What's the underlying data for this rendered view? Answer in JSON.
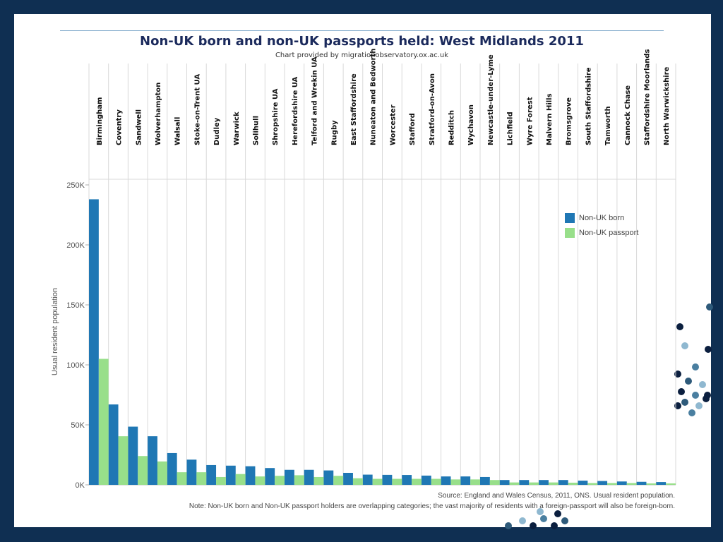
{
  "header": {
    "title": "Non-UK born and non-UK passports held: West Midlands 2011",
    "subtitle": "Chart provided by migrationobservatory.ox.ac.uk"
  },
  "legend": {
    "items": [
      {
        "label": "Non-UK born",
        "color": "#1f77b4"
      },
      {
        "label": "Non-UK passport",
        "color": "#98df8a"
      }
    ]
  },
  "footer": {
    "source": "Source: England and Wales Census, 2011, ONS. Usual resident population.",
    "note": "Note: Non-UK born and Non-UK passport holders are overlapping categories; the vast majority of residents with a foreign-passport will also be foreign-born."
  },
  "chart_data": {
    "type": "bar",
    "title": "Non-UK born and non-UK passports held: West Midlands 2011",
    "subtitle": "Chart provided by migrationobservatory.ox.ac.uk",
    "xlabel": "",
    "ylabel": "Usual resident population",
    "ylim": [
      0,
      250000
    ],
    "yticks": [
      {
        "value": 0,
        "label": "0K"
      },
      {
        "value": 50000,
        "label": "50K"
      },
      {
        "value": 100000,
        "label": "100K"
      },
      {
        "value": 150000,
        "label": "150K"
      },
      {
        "value": 200000,
        "label": "200K"
      },
      {
        "value": 250000,
        "label": "250K"
      }
    ],
    "grid": true,
    "legend_position": "top-right",
    "categories": [
      "Birmingham",
      "Coventry",
      "Sandwell",
      "Wolverhampton",
      "Walsall",
      "Stoke-on-Trent UA",
      "Dudley",
      "Warwick",
      "Solihull",
      "Shropshire UA",
      "Herefordshire UA",
      "Telford and Wrekin UA",
      "Rugby",
      "East Staffordshire",
      "Nuneaton and Bedworth",
      "Worcester",
      "Stafford",
      "Stratford-on-Avon",
      "Redditch",
      "Wychavon",
      "Newcastle-under-Lyme",
      "Lichfield",
      "Wyre Forest",
      "Malvern Hills",
      "Bromsgrove",
      "South Staffordshire",
      "Tamworth",
      "Cannock Chase",
      "Staffordshire Moorlands",
      "North Warwickshire"
    ],
    "series": [
      {
        "name": "Non-UK born",
        "color": "#1f77b4",
        "values": [
          238000,
          67000,
          48500,
          40500,
          26500,
          21000,
          16500,
          16000,
          15500,
          14000,
          12500,
          12500,
          12000,
          10000,
          8500,
          8300,
          8200,
          7700,
          7000,
          7000,
          6500,
          4000,
          4000,
          4000,
          4000,
          3500,
          3200,
          2800,
          2500,
          2300
        ]
      },
      {
        "name": "Non-UK passport",
        "color": "#98df8a",
        "values": [
          105000,
          40500,
          24000,
          19500,
          10500,
          10500,
          6500,
          9000,
          7000,
          7500,
          8000,
          6500,
          7500,
          5500,
          5000,
          5000,
          5000,
          5000,
          4500,
          4500,
          4000,
          2000,
          2000,
          2000,
          1800,
          1500,
          1500,
          1500,
          1200,
          1200
        ]
      }
    ]
  }
}
